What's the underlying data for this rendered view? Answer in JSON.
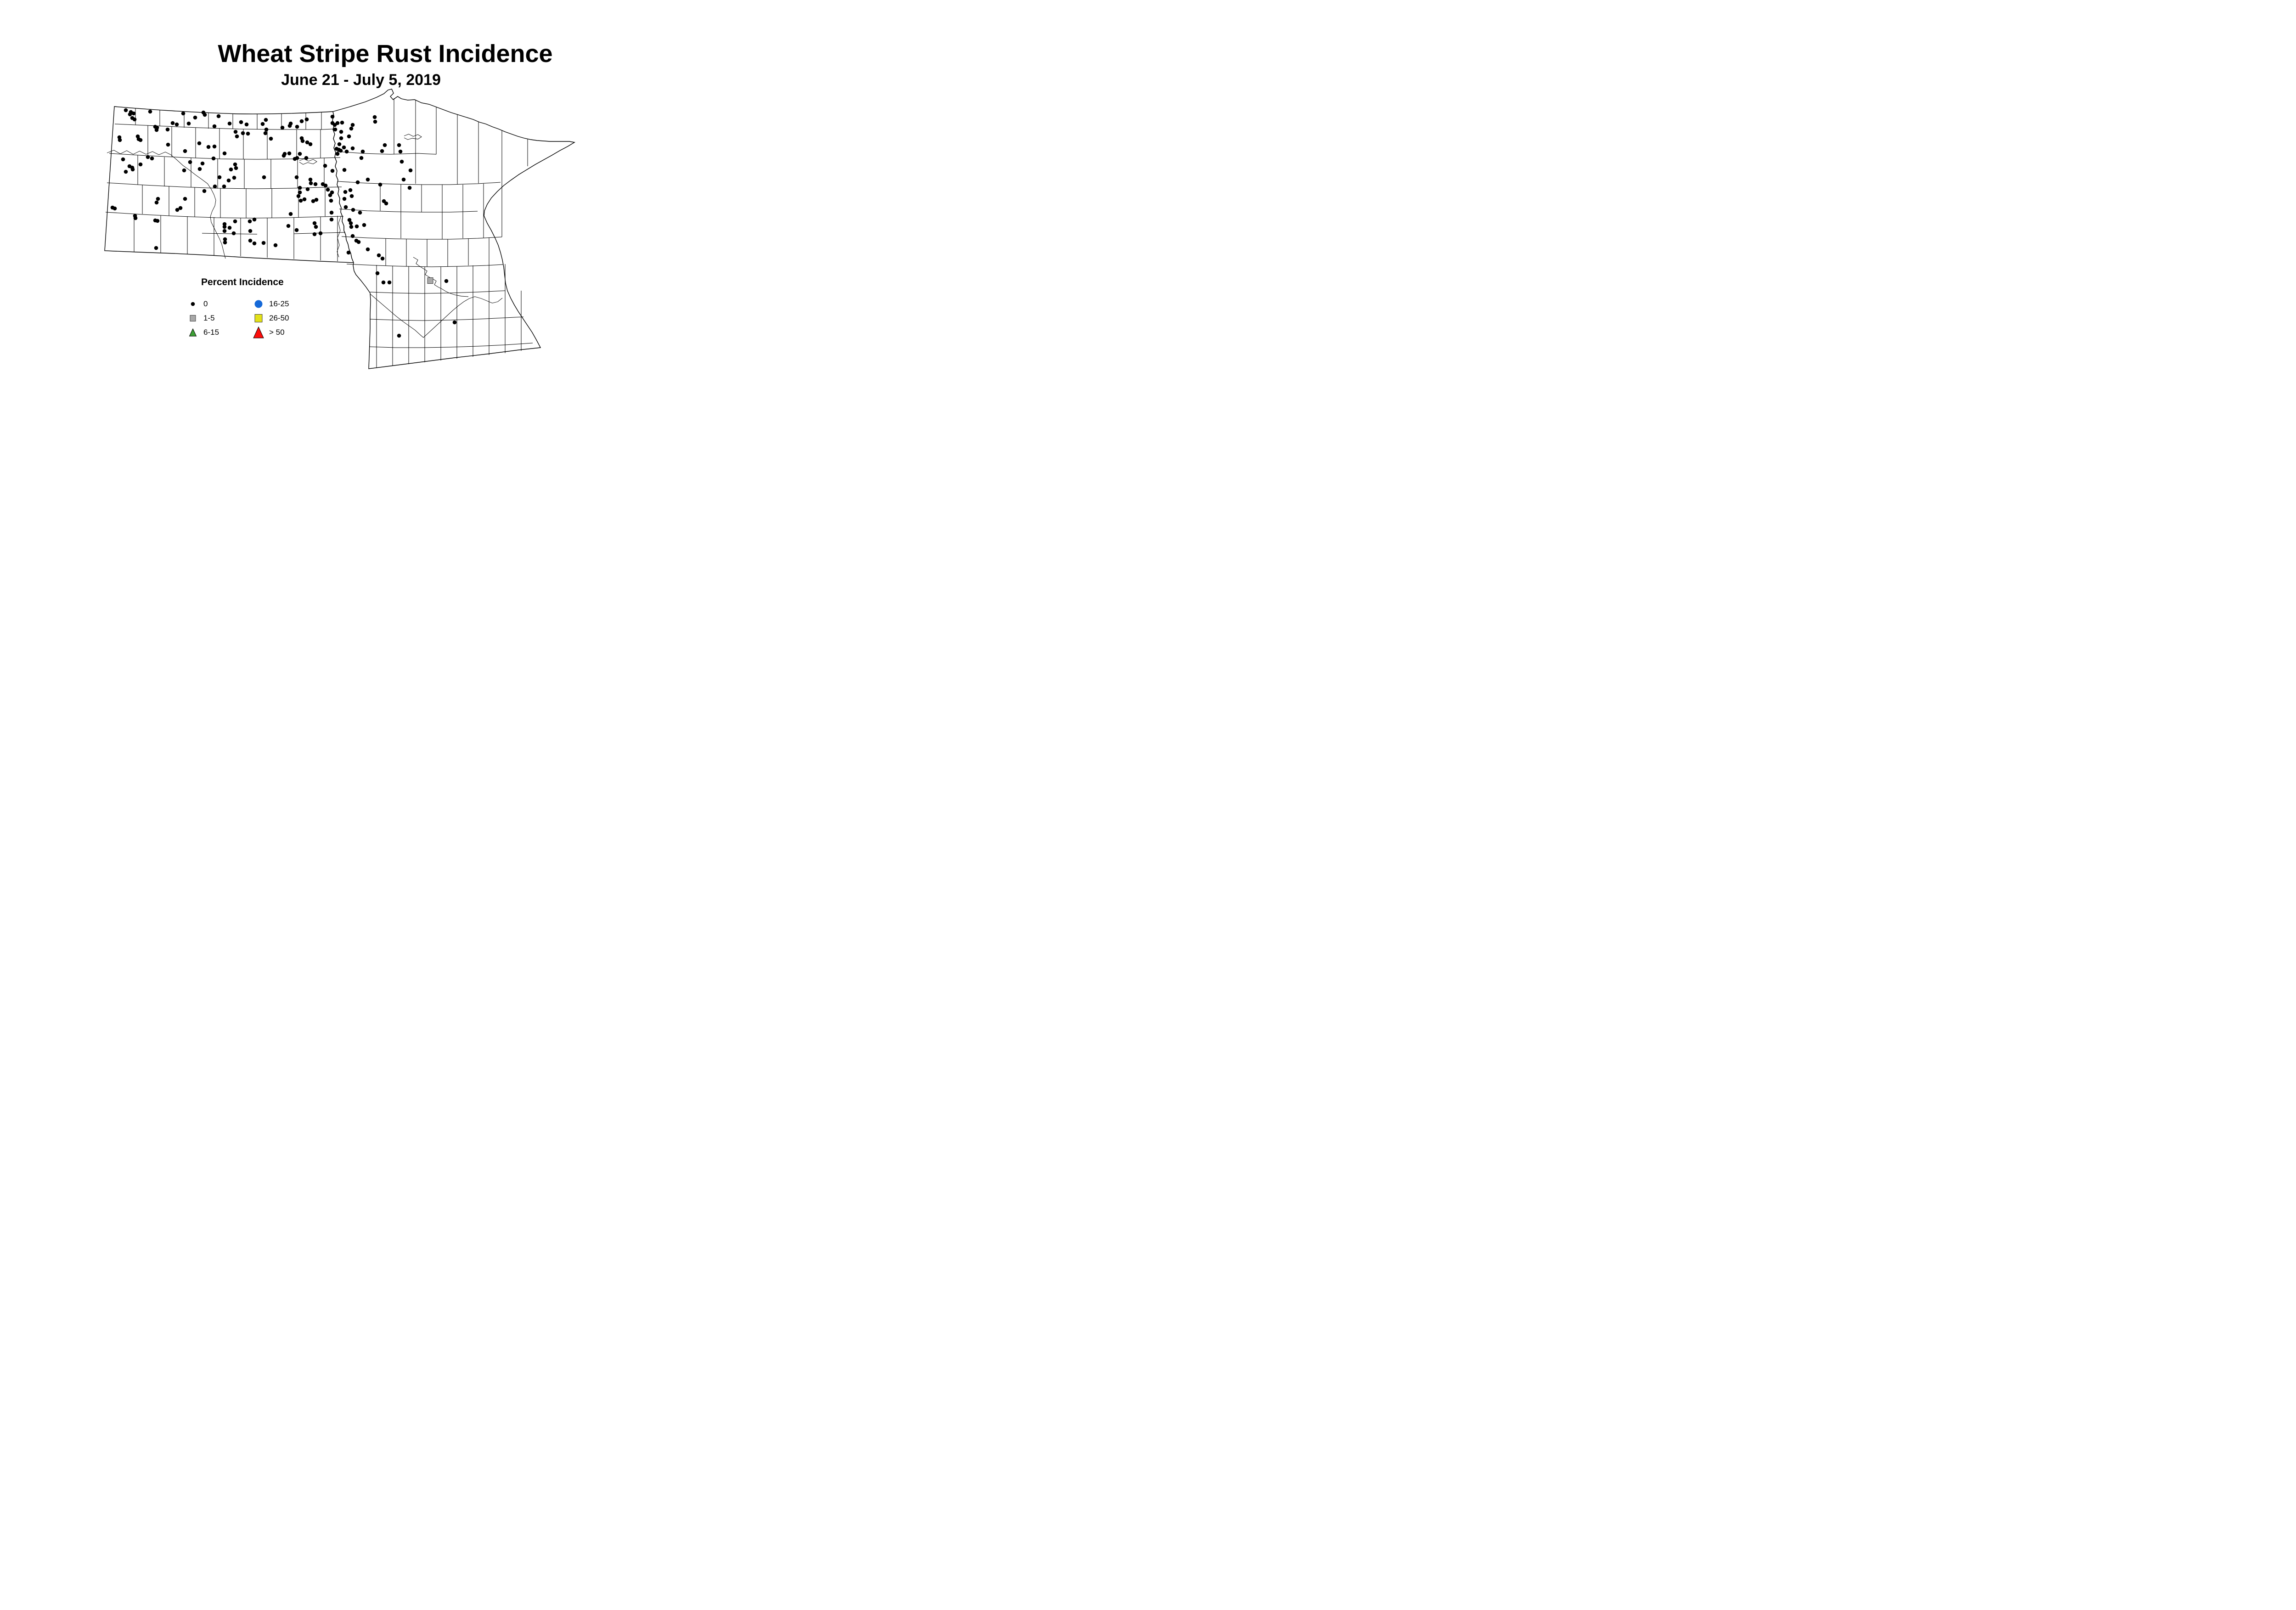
{
  "title": "Wheat Stripe Rust Incidence",
  "subtitle": "June 21 - July 5, 2019",
  "legend": {
    "title": "Percent Incidence",
    "items": [
      {
        "label": "0",
        "marker": "dot-black",
        "color": "#000000"
      },
      {
        "label": "1-5",
        "marker": "square-gray",
        "color": "#a8a8a8"
      },
      {
        "label": "6-15",
        "marker": "triangle-green",
        "color": "#3da035"
      },
      {
        "label": "16-25",
        "marker": "circle-blue",
        "color": "#1569d8"
      },
      {
        "label": "26-50",
        "marker": "square-yellow",
        "color": "#e3e118"
      },
      {
        "label": "> 50",
        "marker": "triangle-red",
        "color": "#fc0d0b"
      }
    ]
  },
  "chart_data": {
    "type": "scatter",
    "map_region": "North Dakota and Minnesota county map",
    "coordinate_space": "page pixels 1568x826",
    "series": [
      {
        "name": "0",
        "marker": "dot-black",
        "color": "#000000",
        "points": [
          [
            274,
            240
          ],
          [
            285,
            244
          ],
          [
            291,
            247
          ],
          [
            283,
            249
          ],
          [
            288,
            257
          ],
          [
            293,
            260
          ],
          [
            327,
            243
          ],
          [
            338,
            276
          ],
          [
            342,
            278
          ],
          [
            341,
            283
          ],
          [
            300,
            297
          ],
          [
            302,
            303
          ],
          [
            306,
            305
          ],
          [
            260,
            299
          ],
          [
            261,
            305
          ],
          [
            399,
            247
          ],
          [
            376,
            268
          ],
          [
            385,
            271
          ],
          [
            411,
            269
          ],
          [
            425,
            256
          ],
          [
            443,
            245
          ],
          [
            446,
            250
          ],
          [
            365,
            282
          ],
          [
            366,
            315
          ],
          [
            476,
            253
          ],
          [
            467,
            275
          ],
          [
            500,
            269
          ],
          [
            525,
            266
          ],
          [
            537,
            271
          ],
          [
            513,
            287
          ],
          [
            529,
            290
          ],
          [
            540,
            291
          ],
          [
            516,
            297
          ],
          [
            434,
            312
          ],
          [
            403,
            329
          ],
          [
            454,
            320
          ],
          [
            467,
            319
          ],
          [
            489,
            334
          ],
          [
            465,
            345
          ],
          [
            322,
            342
          ],
          [
            331,
            345
          ],
          [
            268,
            347
          ],
          [
            306,
            358
          ],
          [
            282,
            362
          ],
          [
            288,
            365
          ],
          [
            289,
            369
          ],
          [
            274,
            374
          ],
          [
            414,
            353
          ],
          [
            441,
            356
          ],
          [
            401,
            371
          ],
          [
            435,
            368
          ],
          [
            503,
            369
          ],
          [
            514,
            366
          ],
          [
            512,
            358
          ],
          [
            478,
            386
          ],
          [
            510,
            387
          ],
          [
            498,
            393
          ],
          [
            468,
            406
          ],
          [
            488,
            406
          ],
          [
            445,
            416
          ],
          [
            344,
            433
          ],
          [
            341,
            441
          ],
          [
            403,
            433
          ],
          [
            245,
            452
          ],
          [
            250,
            454
          ],
          [
            294,
            470
          ],
          [
            295,
            475
          ],
          [
            338,
            480
          ],
          [
            343,
            481
          ],
          [
            386,
            457
          ],
          [
            393,
            453
          ],
          [
            340,
            540
          ],
          [
            489,
            488
          ],
          [
            489,
            494
          ],
          [
            500,
            496
          ],
          [
            512,
            482
          ],
          [
            489,
            503
          ],
          [
            509,
            508
          ],
          [
            545,
            503
          ],
          [
            544,
            482
          ],
          [
            554,
            478
          ],
          [
            490,
            521
          ],
          [
            490,
            528
          ],
          [
            545,
            524
          ],
          [
            554,
            530
          ],
          [
            574,
            529
          ],
          [
            579,
            261
          ],
          [
            572,
            270
          ],
          [
            580,
            282
          ],
          [
            578,
            290
          ],
          [
            590,
            302
          ],
          [
            615,
            278
          ],
          [
            633,
            269
          ],
          [
            631,
            274
          ],
          [
            647,
            276
          ],
          [
            657,
            264
          ],
          [
            668,
            260
          ],
          [
            724,
            254
          ],
          [
            724,
            268
          ],
          [
            729,
            272
          ],
          [
            735,
            268
          ],
          [
            745,
            267
          ],
          [
            730,
            282
          ],
          [
            743,
            287
          ],
          [
            768,
            272
          ],
          [
            765,
            280
          ],
          [
            816,
            255
          ],
          [
            817,
            265
          ],
          [
            760,
            297
          ],
          [
            743,
            301
          ],
          [
            739,
            314
          ],
          [
            733,
            324
          ],
          [
            738,
            326
          ],
          [
            742,
            328
          ],
          [
            749,
            321
          ],
          [
            755,
            330
          ],
          [
            768,
            323
          ],
          [
            735,
            335
          ],
          [
            790,
            330
          ],
          [
            787,
            344
          ],
          [
            838,
            316
          ],
          [
            832,
            329
          ],
          [
            657,
            301
          ],
          [
            659,
            307
          ],
          [
            669,
            310
          ],
          [
            676,
            314
          ],
          [
            620,
            335
          ],
          [
            618,
            339
          ],
          [
            630,
            334
          ],
          [
            653,
            335
          ],
          [
            642,
            346
          ],
          [
            647,
            344
          ],
          [
            667,
            344
          ],
          [
            708,
            361
          ],
          [
            724,
            372
          ],
          [
            750,
            370
          ],
          [
            575,
            386
          ],
          [
            646,
            386
          ],
          [
            676,
            391
          ],
          [
            677,
            399
          ],
          [
            687,
            401
          ],
          [
            703,
            401
          ],
          [
            709,
            404
          ],
          [
            653,
            409
          ],
          [
            670,
            412
          ],
          [
            714,
            413
          ],
          [
            723,
            419
          ],
          [
            653,
            419
          ],
          [
            650,
            427
          ],
          [
            655,
            437
          ],
          [
            663,
            434
          ],
          [
            682,
            438
          ],
          [
            689,
            435
          ],
          [
            719,
            425
          ],
          [
            721,
            437
          ],
          [
            752,
            418
          ],
          [
            763,
            414
          ],
          [
            766,
            427
          ],
          [
            750,
            433
          ],
          [
            801,
            391
          ],
          [
            779,
            397
          ],
          [
            869,
            316
          ],
          [
            872,
            330
          ],
          [
            875,
            352
          ],
          [
            894,
            371
          ],
          [
            879,
            391
          ],
          [
            892,
            409
          ],
          [
            828,
            402
          ],
          [
            836,
            438
          ],
          [
            841,
            443
          ],
          [
            753,
            451
          ],
          [
            769,
            457
          ],
          [
            633,
            466
          ],
          [
            722,
            463
          ],
          [
            784,
            463
          ],
          [
            722,
            478
          ],
          [
            685,
            486
          ],
          [
            688,
            494
          ],
          [
            628,
            492
          ],
          [
            646,
            501
          ],
          [
            685,
            510
          ],
          [
            698,
            508
          ],
          [
            761,
            479
          ],
          [
            764,
            486
          ],
          [
            765,
            494
          ],
          [
            777,
            493
          ],
          [
            793,
            490
          ],
          [
            768,
            514
          ],
          [
            776,
            524
          ],
          [
            781,
            527
          ],
          [
            600,
            534
          ],
          [
            759,
            550
          ],
          [
            801,
            543
          ],
          [
            825,
            556
          ],
          [
            833,
            563
          ],
          [
            822,
            595
          ],
          [
            835,
            615
          ],
          [
            848,
            615
          ],
          [
            972,
            612
          ],
          [
            990,
            702
          ],
          [
            869,
            731
          ]
        ]
      },
      {
        "name": "1-5",
        "marker": "square-gray",
        "color": "#a8a8a8",
        "points": [
          [
            937,
            611
          ]
        ]
      }
    ]
  }
}
